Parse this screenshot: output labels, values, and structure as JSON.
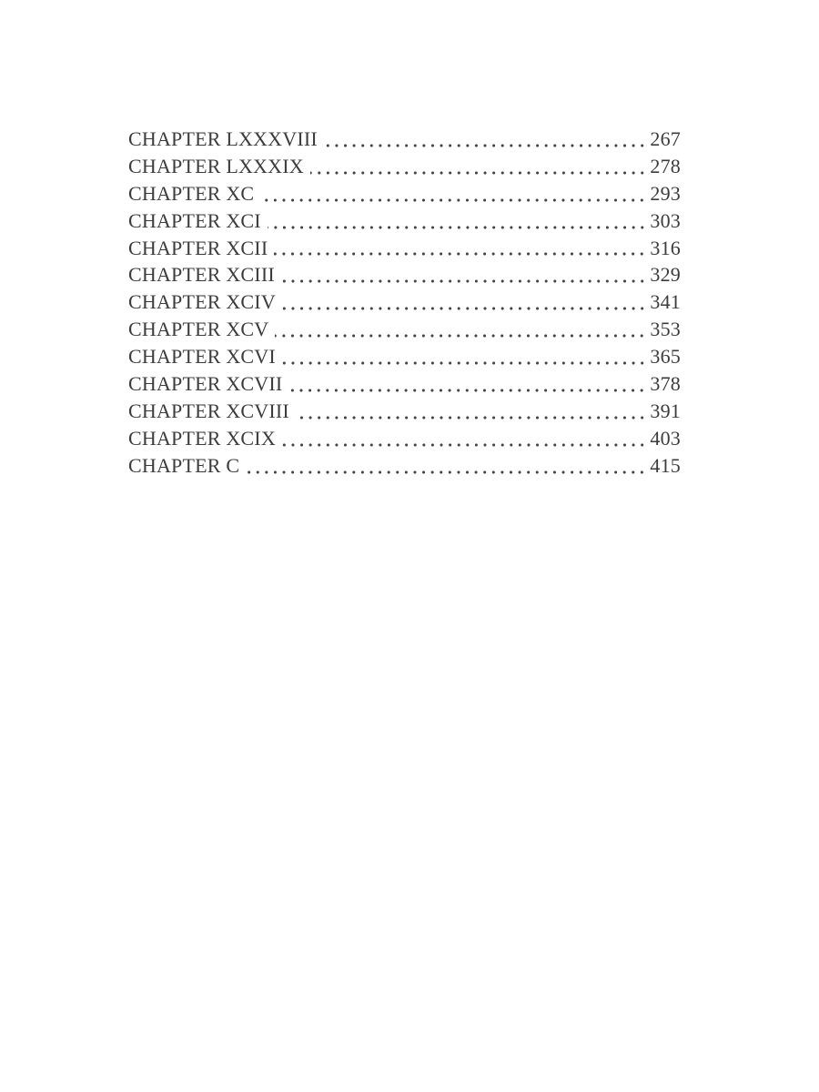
{
  "page": {
    "background_color": "#ffffff",
    "text_color": "#3c3c3c",
    "kind": "book-table-of-contents"
  },
  "toc": {
    "entries": [
      {
        "label": "CHAPTER LXXXVIII",
        "page": "267"
      },
      {
        "label": "CHAPTER LXXXIX",
        "page": "278"
      },
      {
        "label": "CHAPTER XC",
        "page": "293"
      },
      {
        "label": "CHAPTER XCI",
        "page": "303"
      },
      {
        "label": "CHAPTER XCII",
        "page": "316"
      },
      {
        "label": "CHAPTER XCIII",
        "page": "329"
      },
      {
        "label": "CHAPTER XCIV",
        "page": "341"
      },
      {
        "label": "CHAPTER XCV",
        "page": "353"
      },
      {
        "label": "CHAPTER XCVI",
        "page": "365"
      },
      {
        "label": "CHAPTER XCVII",
        "page": "378"
      },
      {
        "label": "CHAPTER XCVIII",
        "page": "391"
      },
      {
        "label": "CHAPTER XCIX",
        "page": "403"
      },
      {
        "label": "CHAPTER C",
        "page": "415"
      }
    ]
  }
}
